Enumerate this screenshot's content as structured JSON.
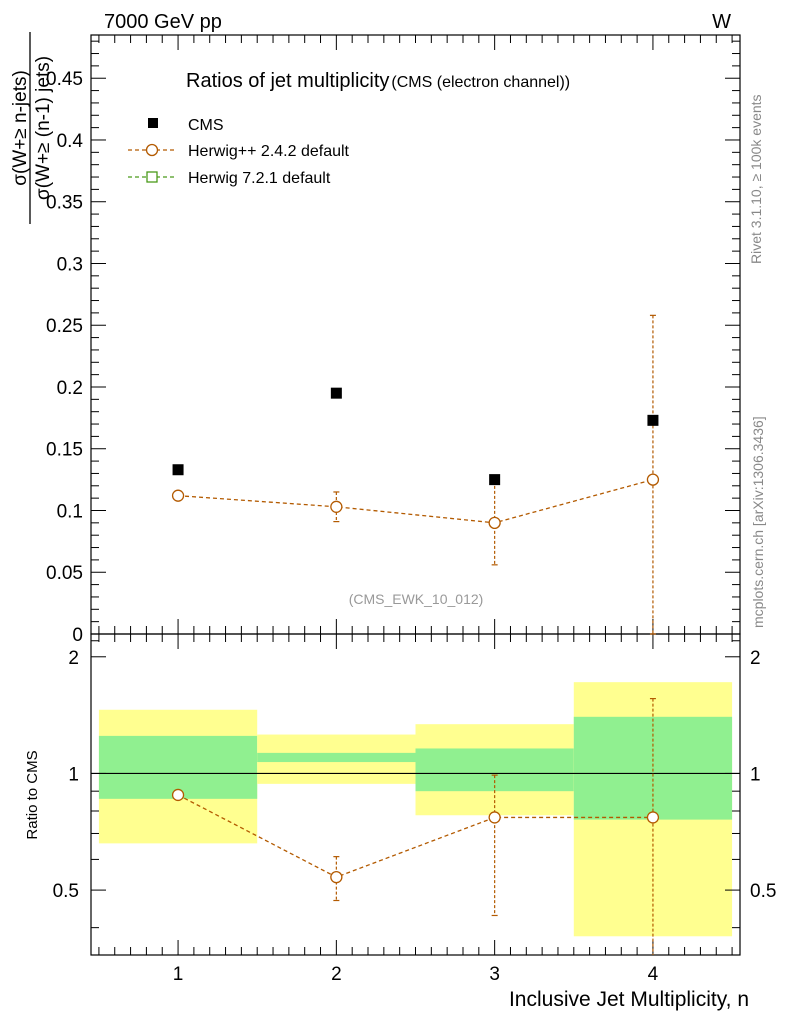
{
  "header": {
    "left_label": "7000 GeV pp",
    "right_label": "W"
  },
  "side_labels": {
    "rivet": "Rivet 3.1.10, ≥ 100k events",
    "mcplots": "mcplots.cern.ch [arXiv:1306.3436]"
  },
  "chart_data": {
    "type": "scatter",
    "title": "Ratios of jet multiplicity",
    "subtitle": "(CMS (electron channel))",
    "analysis_tag": "(CMS_EWK_10_012)",
    "xlabel": "Inclusive Jet Multiplicity, n",
    "ylabel_numerator": "σ(W+≥ n-jets)",
    "ylabel_denominator": "σ(W+≥ (n-1) jets)",
    "ratio_ylabel": "Ratio to CMS",
    "x": [
      1,
      2,
      3,
      4
    ],
    "xlim": [
      0.45,
      4.55
    ],
    "ylim": [
      0,
      0.485
    ],
    "ratio_ylim": [
      0.34,
      2.29
    ],
    "x_ticks": [
      "1",
      "2",
      "3",
      "4"
    ],
    "y_ticks": [
      "0",
      "0.05",
      "0.1",
      "0.15",
      "0.2",
      "0.25",
      "0.3",
      "0.35",
      "0.4",
      "0.45"
    ],
    "ratio_ticks": [
      "0.5",
      "1",
      "2"
    ],
    "legend": [
      {
        "label": "CMS",
        "marker": "filled-square",
        "color": "#000000"
      },
      {
        "label": "Herwig++ 2.4.2 default",
        "marker": "open-circle",
        "color": "#b35a00"
      },
      {
        "label": "Herwig 7.2.1 default",
        "marker": "open-square",
        "color": "#4a9a1a"
      }
    ],
    "series": [
      {
        "name": "CMS",
        "values": [
          0.133,
          0.195,
          0.125,
          0.173
        ]
      },
      {
        "name": "Herwig++ 2.4.2 default",
        "values": [
          0.112,
          0.103,
          0.09,
          0.125
        ],
        "err_low": [
          0.003,
          0.012,
          0.034,
          0.125
        ],
        "err_high": [
          0.003,
          0.012,
          0.034,
          0.133
        ]
      },
      {
        "name": "Herwig 7.2.1 default",
        "values": []
      }
    ],
    "ratio": {
      "reference": 1,
      "bins": [
        [
          0.5,
          1.5
        ],
        [
          1.5,
          2.5
        ],
        [
          2.5,
          3.5
        ],
        [
          3.5,
          4.5
        ]
      ],
      "band_green": [
        [
          0.86,
          1.25
        ],
        [
          1.07,
          1.13
        ],
        [
          0.9,
          1.16
        ],
        [
          0.76,
          1.4
        ]
      ],
      "band_yellow": [
        [
          0.66,
          1.46
        ],
        [
          0.94,
          1.26
        ],
        [
          0.78,
          1.34
        ],
        [
          0.38,
          1.72
        ]
      ],
      "herwig_values": [
        0.88,
        0.54,
        0.77,
        0.77
      ],
      "herwig_err_low": [
        0.02,
        0.07,
        0.34,
        0.77
      ],
      "herwig_err_high": [
        0.02,
        0.07,
        0.22,
        0.79
      ]
    },
    "colors": {
      "band_green": "#90f090",
      "band_yellow": "#ffff90",
      "herwig_pp": "#b35a00",
      "herwig7": "#4a9a1a",
      "side_text": "#888888"
    }
  }
}
